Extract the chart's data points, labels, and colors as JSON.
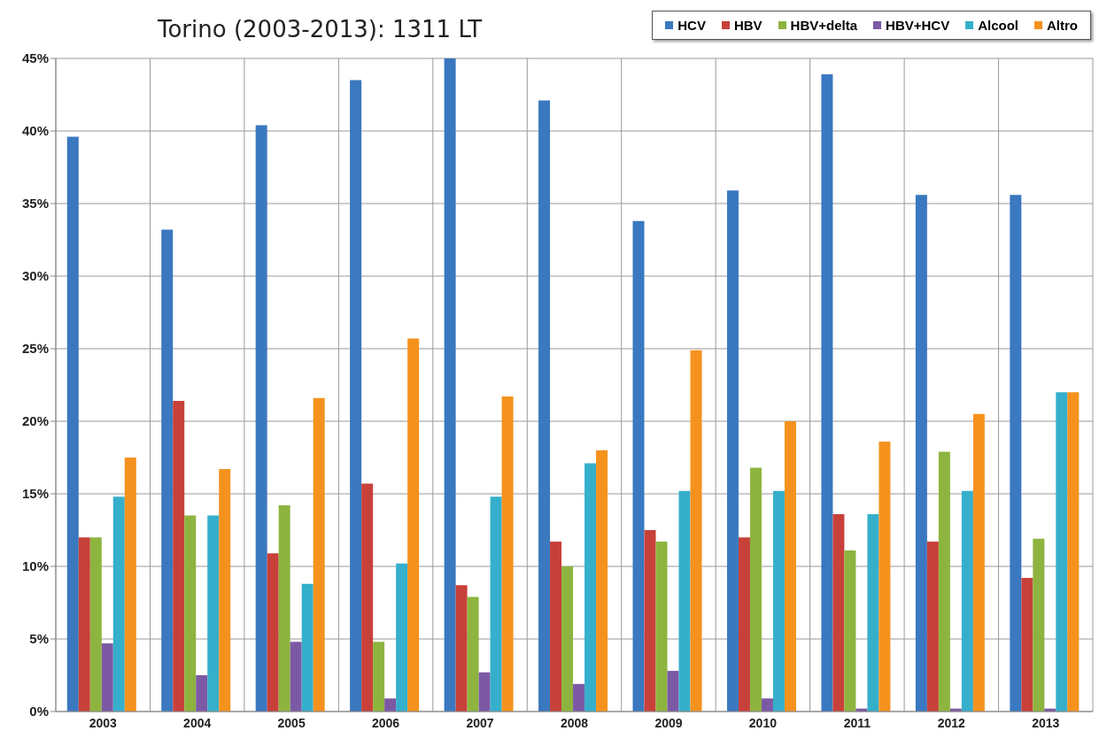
{
  "chart_data": {
    "type": "bar",
    "title": "Torino (2003-2013): 1311 LT",
    "categories": [
      "2003",
      "2004",
      "2005",
      "2006",
      "2007",
      "2008",
      "2009",
      "2010",
      "2011",
      "2012",
      "2013"
    ],
    "series": [
      {
        "name": "HCV",
        "color": "#3a78c0",
        "values": [
          39.6,
          33.2,
          40.4,
          43.5,
          45.0,
          42.1,
          33.8,
          35.9,
          43.9,
          35.6,
          35.6
        ]
      },
      {
        "name": "HBV",
        "color": "#c8403a",
        "values": [
          12.0,
          21.4,
          10.9,
          15.7,
          8.7,
          11.7,
          12.5,
          12.0,
          13.6,
          11.7,
          9.2
        ]
      },
      {
        "name": "HBV+delta",
        "color": "#8db43e",
        "values": [
          12.0,
          13.5,
          14.2,
          4.8,
          7.9,
          10.0,
          11.7,
          16.8,
          11.1,
          17.9,
          11.9
        ]
      },
      {
        "name": "HBV+HCV",
        "color": "#7c59a4",
        "values": [
          4.7,
          2.5,
          4.8,
          0.9,
          2.7,
          1.9,
          2.8,
          0.9,
          0.2,
          0.2,
          0.2
        ]
      },
      {
        "name": "Alcool",
        "color": "#35afcb",
        "values": [
          14.8,
          13.5,
          8.8,
          10.2,
          14.8,
          17.1,
          15.2,
          15.2,
          13.6,
          15.2,
          22.0
        ]
      },
      {
        "name": "Altro",
        "color": "#f5921e",
        "values": [
          17.5,
          16.7,
          21.6,
          25.7,
          21.7,
          18.0,
          24.9,
          20.0,
          18.6,
          20.5,
          22.0
        ]
      }
    ],
    "ylim": [
      0,
      45
    ],
    "yticks": [
      {
        "value": 0,
        "label": "0%"
      },
      {
        "value": 5,
        "label": "5%"
      },
      {
        "value": 10,
        "label": "10%"
      },
      {
        "value": 15,
        "label": "15%"
      },
      {
        "value": 20,
        "label": "20%"
      },
      {
        "value": 25,
        "label": "25%"
      },
      {
        "value": 30,
        "label": "30%"
      },
      {
        "value": 35,
        "label": "35%"
      },
      {
        "value": 40,
        "label": "40%"
      },
      {
        "value": 45,
        "label": "45%"
      }
    ],
    "grid": true,
    "legend": "top right"
  }
}
